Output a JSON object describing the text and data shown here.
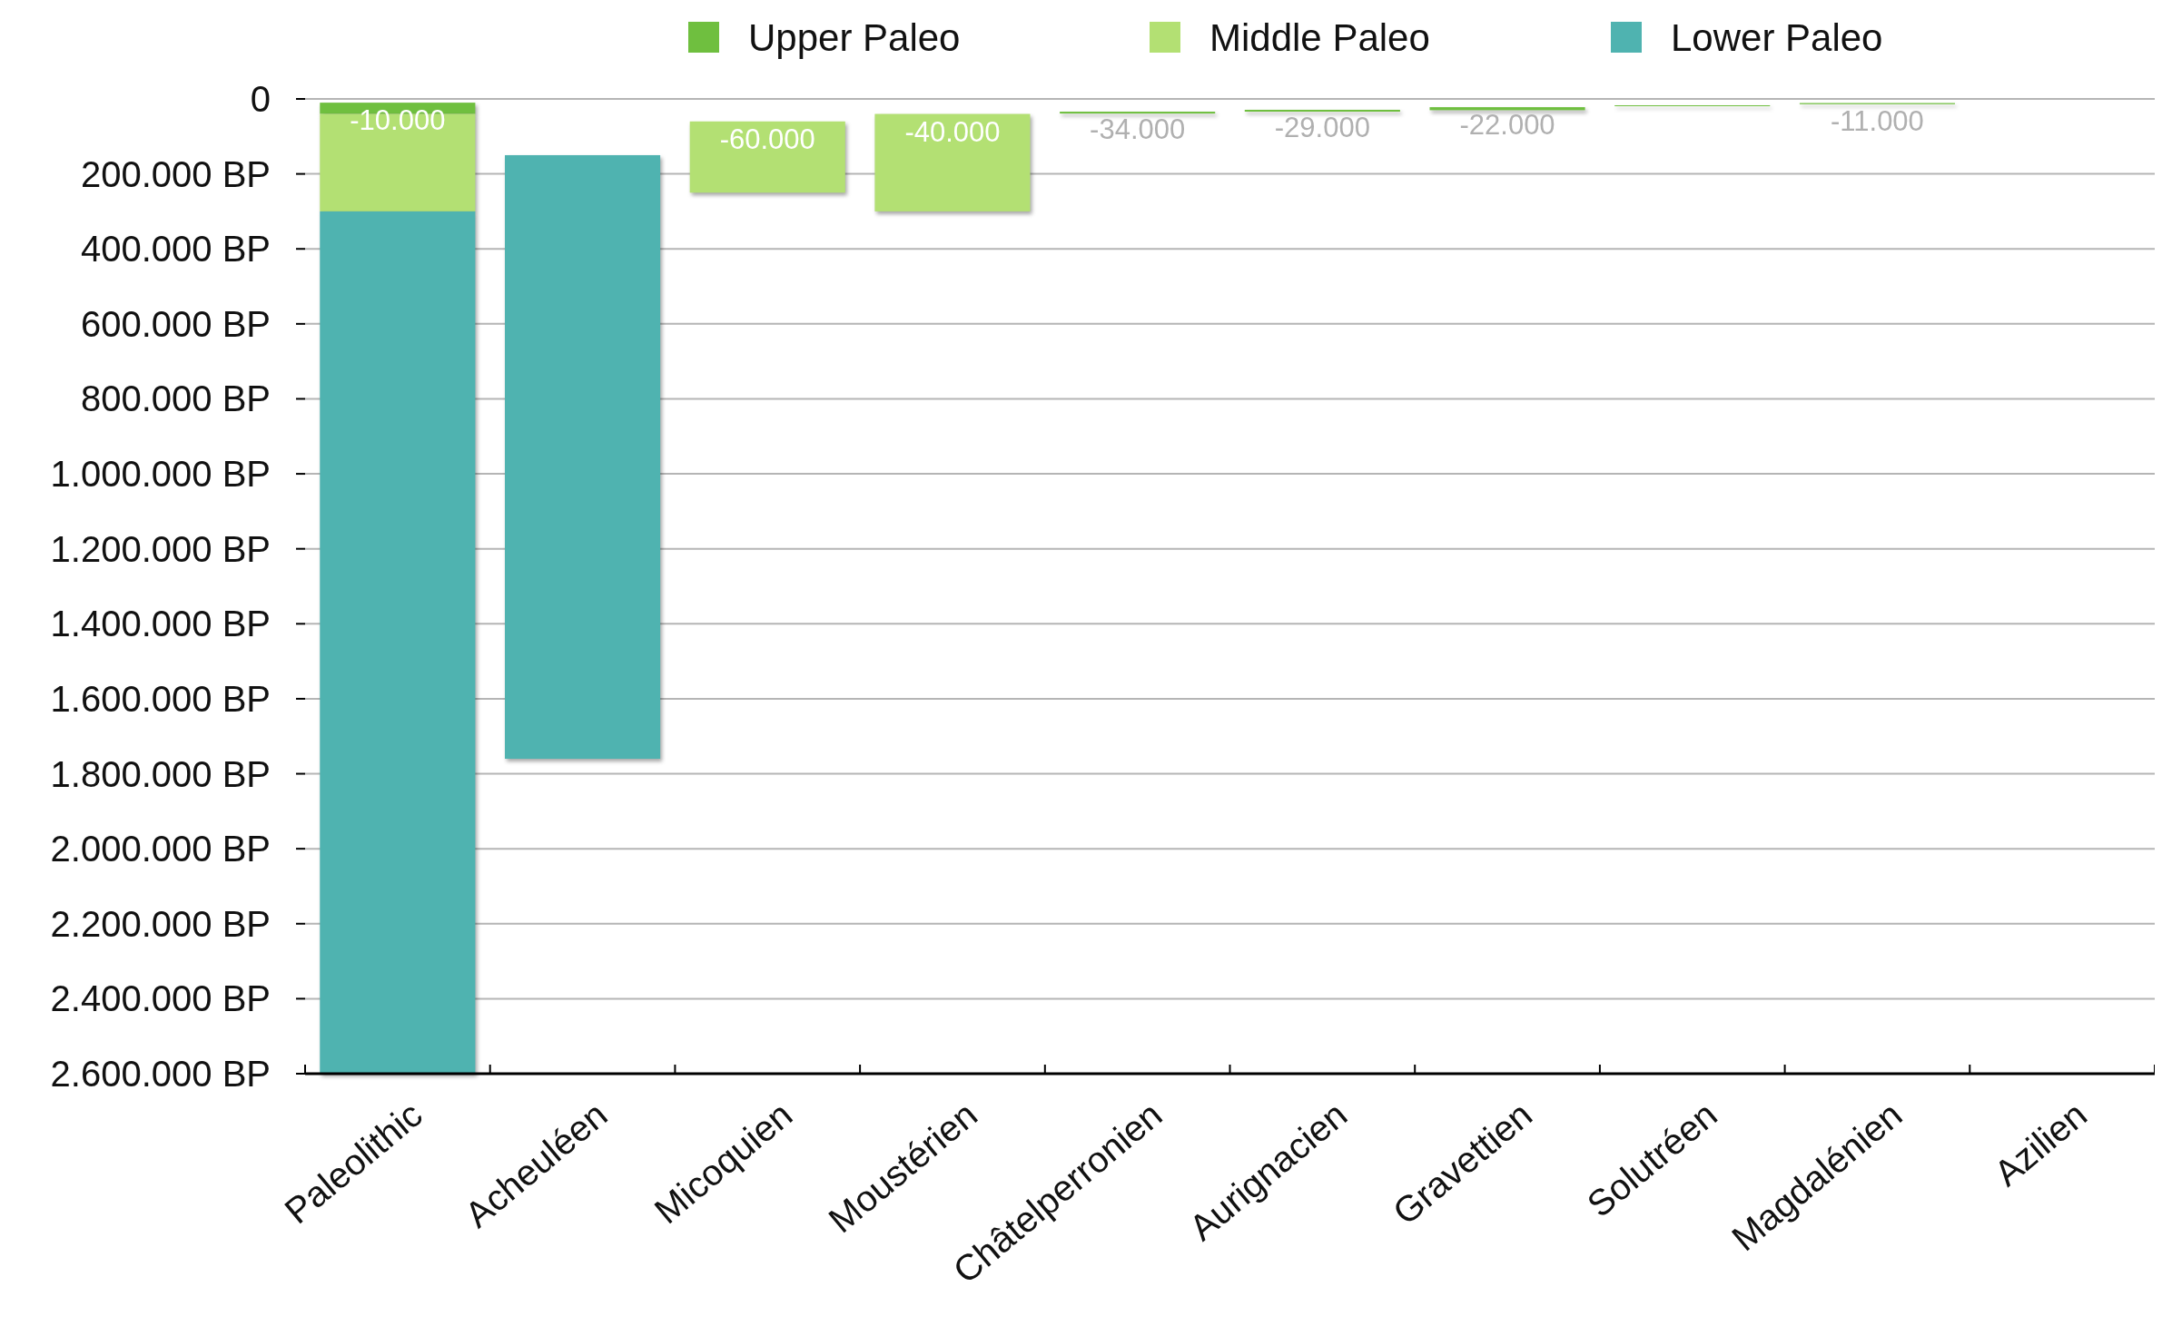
{
  "chart_data": {
    "type": "bar",
    "stacked": false,
    "categories": [
      "Paleolithic",
      "Acheuléen",
      "Micoquien",
      "Moustérien",
      "Châtelperronien",
      "Aurignacien",
      "Gravettien",
      "Solutréen",
      "Magdalénien",
      "Azilien"
    ],
    "series": [
      {
        "name": "Upper Paleo",
        "color": "#6fbf3f",
        "base": [
          10000,
          null,
          null,
          null,
          34000,
          29000,
          22000,
          17000,
          11000,
          null
        ],
        "values": [
          30000,
          null,
          null,
          null,
          5000,
          5000,
          8000,
          2000,
          3000,
          null
        ]
      },
      {
        "name": "Middle Paleo",
        "color": "#b3e073",
        "base": [
          40000,
          null,
          60000,
          40000,
          null,
          null,
          null,
          null,
          null,
          null
        ],
        "values": [
          260000,
          null,
          190000,
          260000,
          null,
          null,
          null,
          null,
          null,
          null
        ]
      },
      {
        "name": "Lower Paleo",
        "color": "#4fb3b0",
        "base": [
          300000,
          150000,
          null,
          null,
          null,
          null,
          null,
          null,
          null,
          null
        ],
        "values": [
          2300000,
          1610000,
          null,
          null,
          null,
          null,
          null,
          null,
          null,
          null
        ]
      }
    ],
    "ylim": [
      2600000,
      0
    ],
    "yticks": [
      0,
      {
        "value": 200000,
        "label": "200.000 BP"
      },
      {
        "value": 400000,
        "label": "400.000 BP"
      },
      {
        "value": 600000,
        "label": "600.000 BP"
      },
      {
        "value": 800000,
        "label": "800.000 BP"
      },
      {
        "value": 1000000,
        "label": "1.000.000 BP"
      },
      {
        "value": 1200000,
        "label": "1.200.000 BP"
      },
      {
        "value": 1400000,
        "label": "1.400.000 BP"
      },
      {
        "value": 1600000,
        "label": "1.600.000 BP"
      },
      {
        "value": 1800000,
        "label": "1.800.000 BP"
      },
      {
        "value": 2000000,
        "label": "2.000.000 BP"
      },
      {
        "value": 2200000,
        "label": "2.200.000 BP"
      },
      {
        "value": 2400000,
        "label": "2.400.000 BP"
      },
      {
        "value": 2600000,
        "label": "2.600.000 BP"
      }
    ],
    "annotations": [
      {
        "text": "-10.000",
        "x": "Paleolithic",
        "y": 10000
      },
      {
        "text": "-60.000",
        "x": "Micoquien",
        "y": 60000
      },
      {
        "text": "-40.000",
        "x": "Moustérien",
        "y": 40000
      },
      {
        "text": "-34.000",
        "x": "Châtelperronien",
        "y": 34000
      },
      {
        "text": "-29.000",
        "x": "Aurignacien",
        "y": 29000
      },
      {
        "text": "-22.000",
        "x": "Gravettien",
        "y": 22000
      },
      {
        "text": "-11.000",
        "x": "Magdalénien",
        "y": 11000
      }
    ],
    "grid": "y",
    "legend": "top"
  }
}
